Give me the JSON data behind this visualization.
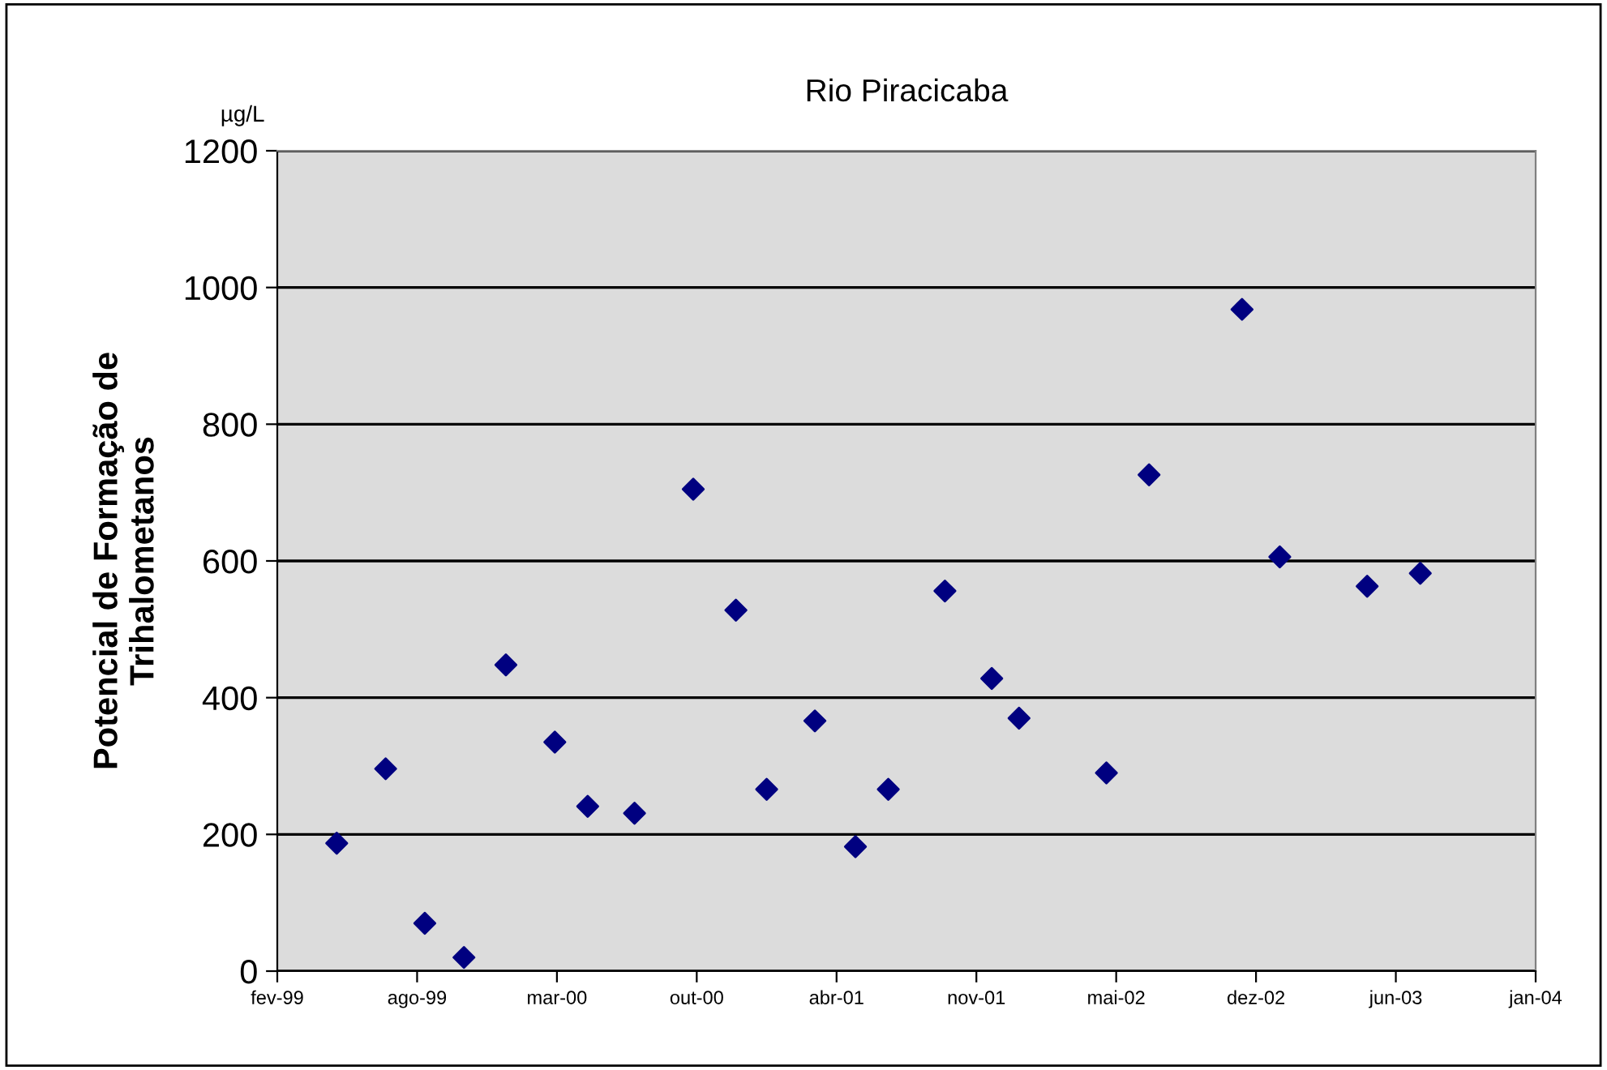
{
  "chart_data": {
    "type": "scatter",
    "title": "Rio Piracicaba",
    "ylabel": "Potencial de Formação de\nTrihalometanos",
    "annotations": [
      "µg/L"
    ],
    "x": [
      "1999-05-06",
      "1999-07-15",
      "1999-09-09",
      "1999-11-04",
      "2000-01-03",
      "2000-03-13",
      "2000-04-29",
      "2000-07-05",
      "2000-09-27",
      "2000-11-27",
      "2001-01-10",
      "2001-03-20",
      "2001-05-17",
      "2001-07-03",
      "2001-09-22",
      "2001-11-28",
      "2002-01-06",
      "2002-05-11",
      "2002-07-11",
      "2002-11-21",
      "2003-01-14",
      "2003-05-19",
      "2003-08-03"
    ],
    "series": [
      {
        "color": "#000080",
        "values": [
          187,
          296,
          70,
          20,
          448,
          335,
          241,
          231,
          705,
          528,
          266,
          366,
          182,
          266,
          556,
          428,
          370,
          290,
          726,
          968,
          606,
          563,
          582
        ]
      }
    ],
    "xlim": [
      "1999-02-10",
      "2004-01-15"
    ],
    "xticks": [
      {
        "value": "1999-02-10",
        "label": "fev-99"
      },
      {
        "value": "1999-08-29",
        "label": "ago-99"
      },
      {
        "value": "2000-03-16",
        "label": "mar-00"
      },
      {
        "value": "2000-10-02",
        "label": "out-00"
      },
      {
        "value": "2001-04-20",
        "label": "abr-01"
      },
      {
        "value": "2001-11-06",
        "label": "nov-01"
      },
      {
        "value": "2002-05-25",
        "label": "mai-02"
      },
      {
        "value": "2002-12-11",
        "label": "dez-02"
      },
      {
        "value": "2003-06-29",
        "label": "jun-03"
      },
      {
        "value": "2004-01-15",
        "label": "jan-04"
      }
    ],
    "ylim": [
      0,
      1200
    ],
    "yticks": [
      0,
      200,
      400,
      600,
      800,
      1000,
      1200
    ],
    "grid": "y",
    "marker": "diamond"
  }
}
